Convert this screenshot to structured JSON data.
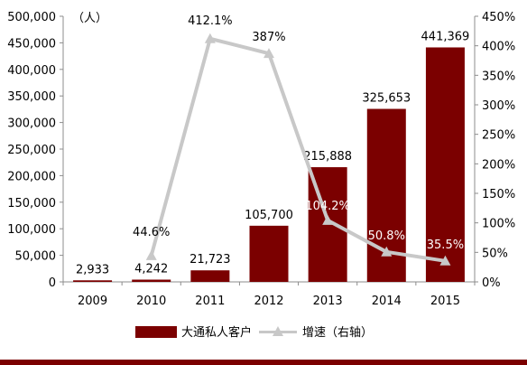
{
  "chart_data": {
    "type": "bar",
    "categories": [
      "2009",
      "2010",
      "2011",
      "2012",
      "2013",
      "2014",
      "2015"
    ],
    "series": [
      {
        "name": "大通私人客户",
        "type": "bar",
        "axis": "left",
        "values": [
          2933,
          4242,
          21723,
          105700,
          215888,
          325653,
          441369
        ],
        "labels": [
          "2,933",
          "4,242",
          "21,723",
          "105,700",
          "215,888",
          "325,653",
          "441,369"
        ]
      },
      {
        "name": "增速（右轴）",
        "type": "line",
        "axis": "right",
        "values": [
          null,
          44.6,
          412.1,
          387,
          104.2,
          50.8,
          35.5
        ],
        "labels": [
          "",
          "44.6%",
          "412.1%",
          "387%",
          "104.2%",
          "50.8%",
          "35.5%"
        ]
      }
    ],
    "y_left": {
      "unit": "（人）",
      "ylim": [
        0,
        500000
      ],
      "ticks": [
        "0",
        "50,000",
        "100,000",
        "150,000",
        "200,000",
        "250,000",
        "300,000",
        "350,000",
        "400,000",
        "450,000",
        "500,000"
      ]
    },
    "y_right": {
      "ylim": [
        0,
        450
      ],
      "ticks": [
        "0%",
        "50%",
        "100%",
        "150%",
        "200%",
        "250%",
        "300%",
        "350%",
        "400%",
        "450%"
      ]
    },
    "grid": false,
    "legend_position": "bottom",
    "colors": {
      "bar": "#7b0000",
      "line": "#c8c8c8",
      "axis": "#8c8c8c",
      "bottom_rule": "#7b0000"
    }
  }
}
